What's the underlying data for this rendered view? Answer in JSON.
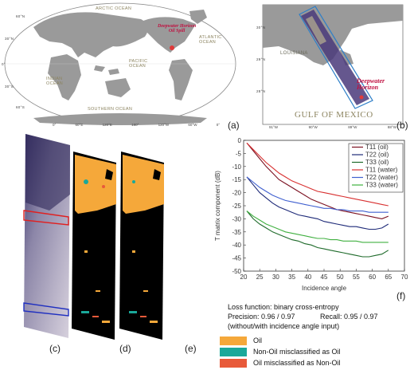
{
  "panel_labels": {
    "a": "(a)",
    "b": "(b)",
    "c": "(c)",
    "d": "(d)",
    "e": "(e)",
    "f": "(f)"
  },
  "map_a": {
    "oceans": [
      "ARCTIC OCEAN",
      "ATLANTIC OCEAN",
      "PACIFIC OCEAN",
      "INDIAN OCEAN",
      "SOUTHERN OCEAN"
    ],
    "annotation_line1": "Deepwater Horizon",
    "annotation_line2": "Oil Spill",
    "lat_labels": [
      "60°N",
      "30°N",
      "0°",
      "30°S",
      "60°S"
    ],
    "lon_labels": [
      "0°",
      "60°E",
      "120°E",
      "180°",
      "120°W",
      "60°W",
      "0°"
    ]
  },
  "map_b": {
    "gulf_label": "GULF OF MEXICO",
    "annotation_line1": "Deepwater",
    "annotation_line2": "Horizon",
    "state_label": "LOUISIANA",
    "lat_labels": [
      "30°N",
      "29°N",
      "28°N"
    ],
    "lon_labels": [
      "91°W",
      "90°W",
      "89°W",
      "88°W"
    ]
  },
  "chart_data": {
    "type": "line",
    "xlabel": "Incidence angle",
    "ylabel": "T matrix component (dB)",
    "xlim": [
      20,
      70
    ],
    "ylim": [
      -50,
      0
    ],
    "xticks": [
      20,
      25,
      30,
      35,
      40,
      45,
      50,
      55,
      60,
      65,
      70
    ],
    "yticks": [
      0,
      -5,
      -10,
      -15,
      -20,
      -25,
      -30,
      -35,
      -40,
      -45,
      -50
    ],
    "grid": false,
    "legend_position": "top-right",
    "x": [
      21,
      23,
      25,
      27,
      29,
      31,
      33,
      35,
      37,
      39,
      41,
      43,
      45,
      47,
      49,
      51,
      53,
      55,
      57,
      59,
      61,
      63,
      65
    ],
    "series": [
      {
        "name": "T11 (oil)",
        "color": "#7b1020",
        "values": [
          -1,
          -4,
          -7,
          -10,
          -12.5,
          -15,
          -16.5,
          -18,
          -19.5,
          -21,
          -22.5,
          -23.5,
          -24.5,
          -25.5,
          -26.5,
          -27,
          -27.5,
          -28,
          -28.5,
          -29,
          -29.5,
          -30,
          -29
        ]
      },
      {
        "name": "T22 (oil)",
        "color": "#1e2a78",
        "values": [
          -14,
          -17,
          -20,
          -22,
          -24,
          -25.5,
          -26.5,
          -27.5,
          -28.5,
          -29,
          -29.5,
          -30,
          -31,
          -31.5,
          -32,
          -32.5,
          -33,
          -33,
          -33.5,
          -34,
          -34,
          -33.5,
          -32
        ]
      },
      {
        "name": "T33 (oil)",
        "color": "#1e6a2a",
        "values": [
          -27,
          -30,
          -32,
          -33.5,
          -35,
          -36,
          -37,
          -38,
          -38.5,
          -39.5,
          -40,
          -41,
          -41.5,
          -42,
          -42.5,
          -43,
          -43.5,
          -44,
          -44.5,
          -44.5,
          -44,
          -43.5,
          -42
        ]
      },
      {
        "name": "T11 (water)",
        "color": "#d83030",
        "values": [
          -1,
          -3.5,
          -6,
          -8.5,
          -10.5,
          -12.5,
          -14,
          -15.5,
          -16.5,
          -17.5,
          -18.5,
          -19.5,
          -20,
          -20.5,
          -21,
          -21.5,
          -22,
          -22.5,
          -23,
          -23.5,
          -24,
          -24.5,
          -25
        ]
      },
      {
        "name": "T22 (water)",
        "color": "#4060d0",
        "values": [
          -14,
          -16,
          -18,
          -19.5,
          -21,
          -22,
          -23,
          -23.5,
          -24,
          -24.5,
          -25,
          -25.5,
          -26,
          -26,
          -26.5,
          -26.5,
          -27,
          -27,
          -27,
          -27.5,
          -27.5,
          -27.5,
          -27.5
        ]
      },
      {
        "name": "T33 (water)",
        "color": "#40b040",
        "values": [
          -27,
          -29,
          -30.5,
          -32,
          -33,
          -34,
          -35,
          -35.5,
          -36,
          -36.5,
          -37,
          -37.5,
          -37.5,
          -38,
          -38,
          -38.5,
          -38.5,
          -38.5,
          -39,
          -39,
          -39,
          -39,
          -39
        ]
      }
    ]
  },
  "info": {
    "loss": "Loss function: binary cross-entropy",
    "precision": "Precision: 0.96 / 0.97",
    "recall": "Recall: 0.95 / 0.97",
    "note": "(without/with incidence angle input)"
  },
  "legend": [
    {
      "label": "Oil",
      "color": "#f5a83a"
    },
    {
      "label": "Non-Oil misclassified as Oil",
      "color": "#1aa89a"
    },
    {
      "label": "Oil misclassified as Non-Oil",
      "color": "#e85a3a"
    }
  ]
}
